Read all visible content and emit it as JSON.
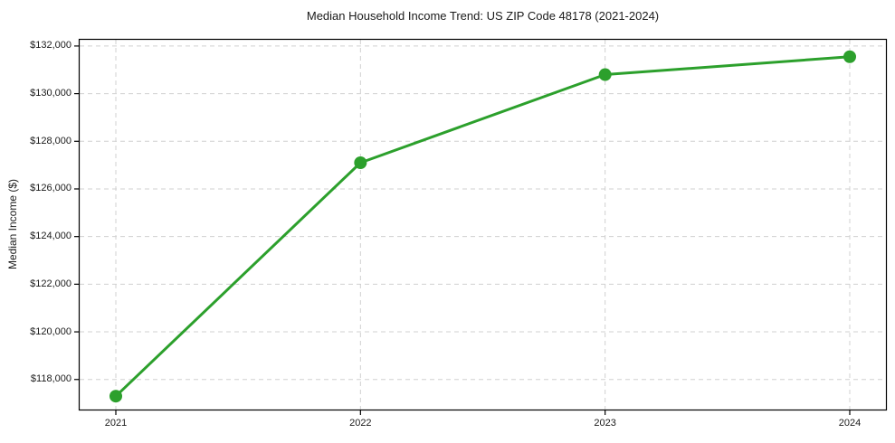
{
  "figure": {
    "background": "#ffffff",
    "text_color": "#1a1a1a"
  },
  "chart_data": {
    "type": "line",
    "title": "Median Household Income Trend: US ZIP Code 48178 (2021-2024)",
    "xlabel": "",
    "ylabel": "Median Income ($)",
    "categories": [
      "2021",
      "2022",
      "2023",
      "2024"
    ],
    "series": [
      {
        "name": "Median Household Income",
        "values": [
          117300,
          127100,
          130800,
          131550
        ],
        "color": "#2ca02c",
        "marker": "circle",
        "marker_radius": 7,
        "line_width": 3
      }
    ],
    "yticks": [
      118000,
      120000,
      122000,
      124000,
      126000,
      128000,
      130000,
      132000
    ],
    "ytick_labels": [
      "$118,000",
      "$120,000",
      "$122,000",
      "$124,000",
      "$126,000",
      "$128,000",
      "$130,000",
      "$132,000"
    ],
    "ylim": [
      116700,
      132300
    ],
    "grid": true,
    "grid_color": "#d0d0d0",
    "grid_style": "dashed",
    "spine_color": "#000000",
    "legend_position": "none"
  }
}
